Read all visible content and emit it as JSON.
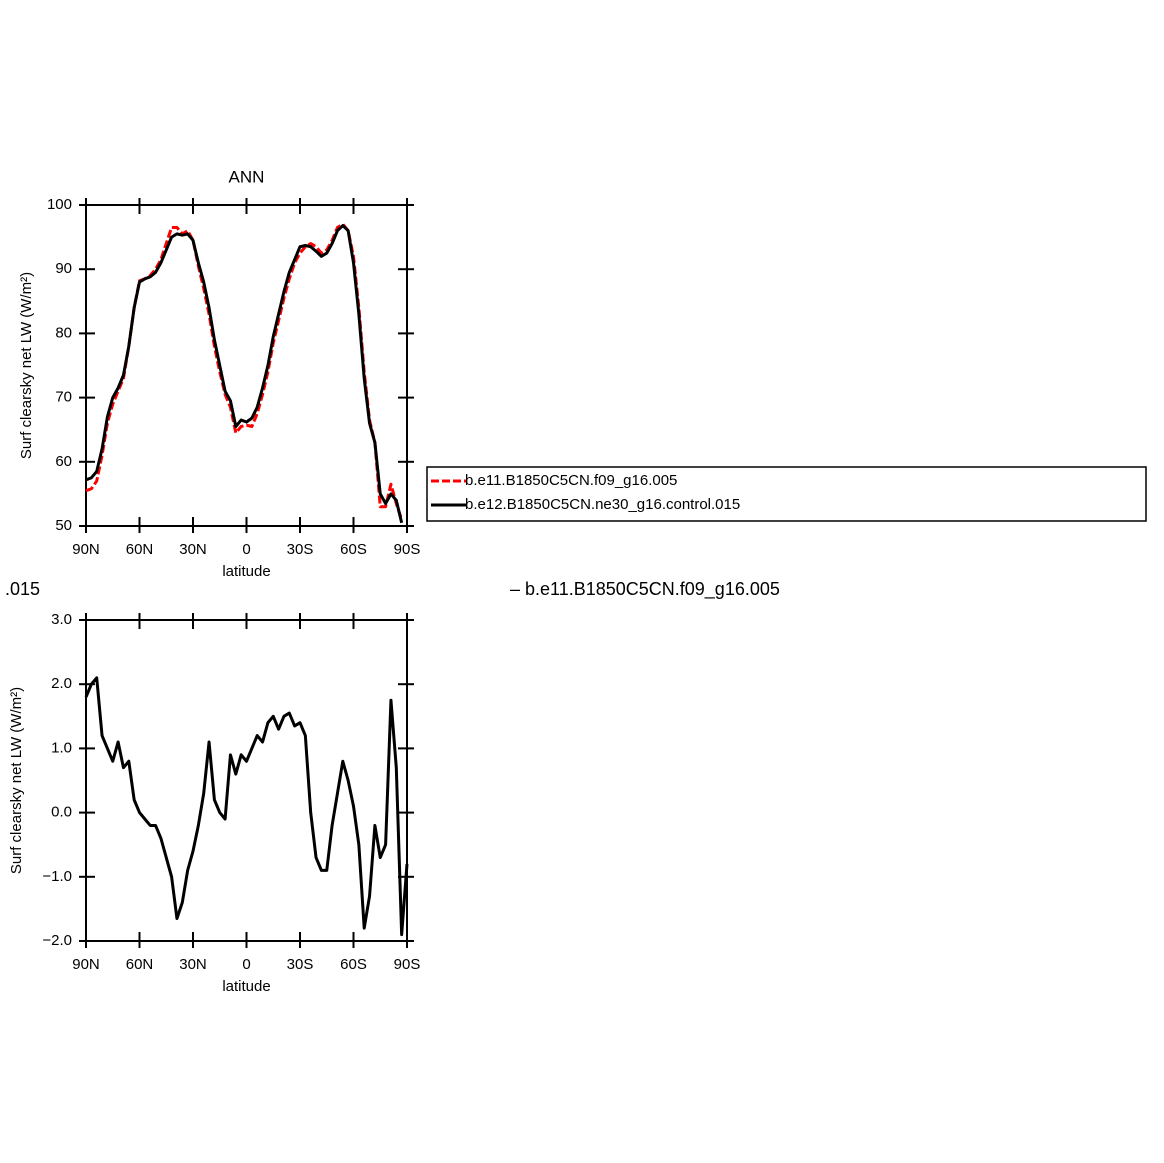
{
  "chart_data": [
    {
      "type": "line",
      "title": "ANN",
      "xlabel": "latitude",
      "ylabel": "Surf clearsky net LW (W/m²)",
      "x": [
        90,
        87,
        84,
        81,
        78,
        75,
        72,
        69,
        66,
        63,
        60,
        57,
        54,
        51,
        48,
        45,
        42,
        39,
        36,
        33,
        30,
        27,
        24,
        21,
        18,
        15,
        12,
        9,
        6,
        3,
        0,
        -3,
        -6,
        -9,
        -12,
        -15,
        -18,
        -21,
        -24,
        -27,
        -30,
        -33,
        -36,
        -39,
        -42,
        -45,
        -48,
        -51,
        -54,
        -57,
        -60,
        -63,
        -66,
        -69,
        -72,
        -75,
        -78,
        -81,
        -84,
        -87
      ],
      "series": [
        {
          "name": "b.e11.B1850C5CN.f09_g16.005",
          "color": "#ff0000",
          "dash": true,
          "values": [
            55.5,
            55.8,
            57,
            61,
            66,
            69,
            71,
            73,
            78,
            84,
            88.2,
            88.5,
            89,
            90,
            91.5,
            94,
            96.5,
            96.5,
            95.5,
            96,
            94.5,
            90.5,
            87,
            83,
            78,
            74,
            70.5,
            68.5,
            64.5,
            65.5,
            65.7,
            65.5,
            67.5,
            70.5,
            74,
            78.5,
            82,
            85.5,
            88.5,
            91,
            92.5,
            93.5,
            94,
            93.5,
            92.5,
            93,
            94.5,
            96.5,
            97,
            96,
            92,
            84,
            74,
            66.5,
            63,
            53,
            53,
            56.5,
            53.5,
            51
          ]
        },
        {
          "name": "b.e12.B1850C5CN.ne30_g16.control.015",
          "color": "#000000",
          "dash": false,
          "values": [
            57.2,
            57.5,
            58.5,
            62,
            67,
            70,
            71.5,
            73.5,
            78,
            84,
            88,
            88.5,
            88.8,
            89.5,
            91,
            93,
            95,
            95.5,
            95.3,
            95.5,
            94.5,
            91,
            88,
            84,
            79,
            75,
            71,
            69.5,
            65.5,
            66.5,
            66.2,
            66.8,
            68.5,
            71.5,
            75,
            79.5,
            83,
            86.5,
            89.5,
            91.5,
            93.5,
            93.7,
            93.5,
            92.8,
            92,
            92.5,
            94,
            96,
            96.8,
            96,
            91,
            83,
            73,
            66,
            63,
            55,
            53.5,
            55,
            54,
            50.5
          ]
        }
      ],
      "xlim": [
        90,
        -90
      ],
      "xticks": [
        {
          "value": 90,
          "label": "90N"
        },
        {
          "value": 60,
          "label": "60N"
        },
        {
          "value": 30,
          "label": "30N"
        },
        0,
        {
          "value": -30,
          "label": "30S"
        },
        {
          "value": -60,
          "label": "60S"
        },
        {
          "value": -90,
          "label": "90S"
        }
      ],
      "ylim": [
        50,
        100
      ],
      "yticks": [
        50,
        60,
        70,
        80,
        90,
        100
      ],
      "legend": "right"
    },
    {
      "type": "line",
      "xlabel": "latitude",
      "ylabel": "Surf clearsky net LW (W/m²)",
      "color": "#000000",
      "x": [
        90,
        87,
        84,
        81,
        78,
        75,
        72,
        69,
        66,
        63,
        60,
        57,
        54,
        51,
        48,
        45,
        42,
        39,
        36,
        33,
        30,
        27,
        24,
        21,
        18,
        15,
        12,
        9,
        6,
        3,
        0,
        -3,
        -6,
        -9,
        -12,
        -15,
        -18,
        -21,
        -24,
        -27,
        -30,
        -33,
        -36,
        -39,
        -42,
        -45,
        -48,
        -51,
        -54,
        -57,
        -60,
        -63,
        -66,
        -69,
        -72,
        -75,
        -78,
        -81,
        -84,
        -87,
        -90
      ],
      "values": [
        1.8,
        2.0,
        2.1,
        1.2,
        1.0,
        0.8,
        1.1,
        0.7,
        0.8,
        0.2,
        0.0,
        -0.1,
        -0.2,
        -0.2,
        -0.4,
        -0.7,
        -1.0,
        -1.65,
        -1.4,
        -0.9,
        -0.6,
        -0.2,
        0.3,
        1.1,
        0.2,
        0.0,
        -0.1,
        0.9,
        0.6,
        0.9,
        0.8,
        1.0,
        1.2,
        1.1,
        1.4,
        1.5,
        1.3,
        1.5,
        1.55,
        1.35,
        1.4,
        1.2,
        0.0,
        -0.7,
        -0.9,
        -0.9,
        -0.2,
        0.3,
        0.8,
        0.5,
        0.1,
        -0.5,
        -1.8,
        -1.3,
        -0.2,
        -0.7,
        -0.5,
        1.75,
        0.7,
        -1.9,
        -0.8
      ],
      "xlim": [
        90,
        -90
      ],
      "xticks": [
        {
          "value": 90,
          "label": "90N"
        },
        {
          "value": 60,
          "label": "60N"
        },
        {
          "value": 30,
          "label": "30N"
        },
        0,
        {
          "value": -30,
          "label": "30S"
        },
        {
          "value": -60,
          "label": "60S"
        },
        {
          "value": -90,
          "label": "90S"
        }
      ],
      "ylim": [
        -2,
        3
      ],
      "yticks": [
        {
          "value": -2,
          "label": "−2.0"
        },
        {
          "value": -1,
          "label": "−1.0"
        },
        {
          "value": 0,
          "label": "0.0"
        },
        {
          "value": 1,
          "label": "1.0"
        },
        {
          "value": 2,
          "label": "2.0"
        },
        {
          "value": 3,
          "label": "3.0"
        }
      ]
    }
  ],
  "fragments": [
    ".015",
    "– b.e11.B1850C5CN.f09_g16.005"
  ]
}
